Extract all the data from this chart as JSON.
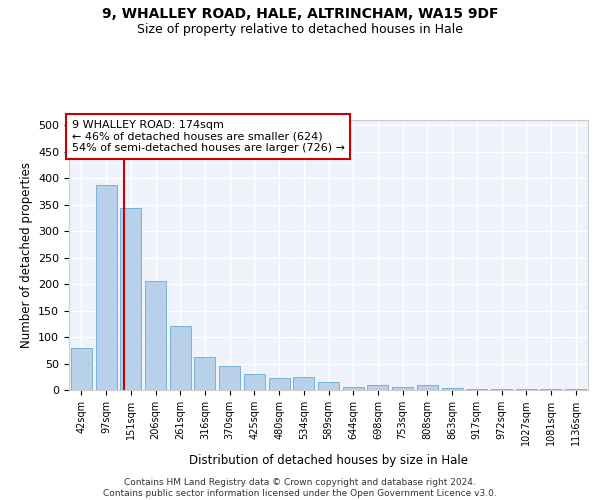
{
  "title_line1": "9, WHALLEY ROAD, HALE, ALTRINCHAM, WA15 9DF",
  "title_line2": "Size of property relative to detached houses in Hale",
  "xlabel": "Distribution of detached houses by size in Hale",
  "ylabel": "Number of detached properties",
  "bar_labels": [
    "42sqm",
    "97sqm",
    "151sqm",
    "206sqm",
    "261sqm",
    "316sqm",
    "370sqm",
    "425sqm",
    "480sqm",
    "534sqm",
    "589sqm",
    "644sqm",
    "698sqm",
    "753sqm",
    "808sqm",
    "863sqm",
    "917sqm",
    "972sqm",
    "1027sqm",
    "1081sqm",
    "1136sqm"
  ],
  "bar_values": [
    80,
    388,
    344,
    205,
    120,
    62,
    45,
    31,
    22,
    25,
    15,
    5,
    9,
    5,
    10,
    3,
    2,
    2,
    1,
    1,
    1
  ],
  "bar_color": "#b8d0ea",
  "bar_edge_color": "#6aaad4",
  "background_color": "#eef2fa",
  "grid_color": "#ffffff",
  "annotation_text_line1": "9 WHALLEY ROAD: 174sqm",
  "annotation_text_line2": "← 46% of detached houses are smaller (624)",
  "annotation_text_line3": "54% of semi-detached houses are larger (726) →",
  "vline_position": 1.72,
  "vline_color": "#cc0000",
  "annotation_box_color": "#ffffff",
  "annotation_box_edge": "#cc0000",
  "footer_text": "Contains HM Land Registry data © Crown copyright and database right 2024.\nContains public sector information licensed under the Open Government Licence v3.0.",
  "ylim": [
    0,
    510
  ],
  "yticks": [
    0,
    50,
    100,
    150,
    200,
    250,
    300,
    350,
    400,
    450,
    500
  ]
}
